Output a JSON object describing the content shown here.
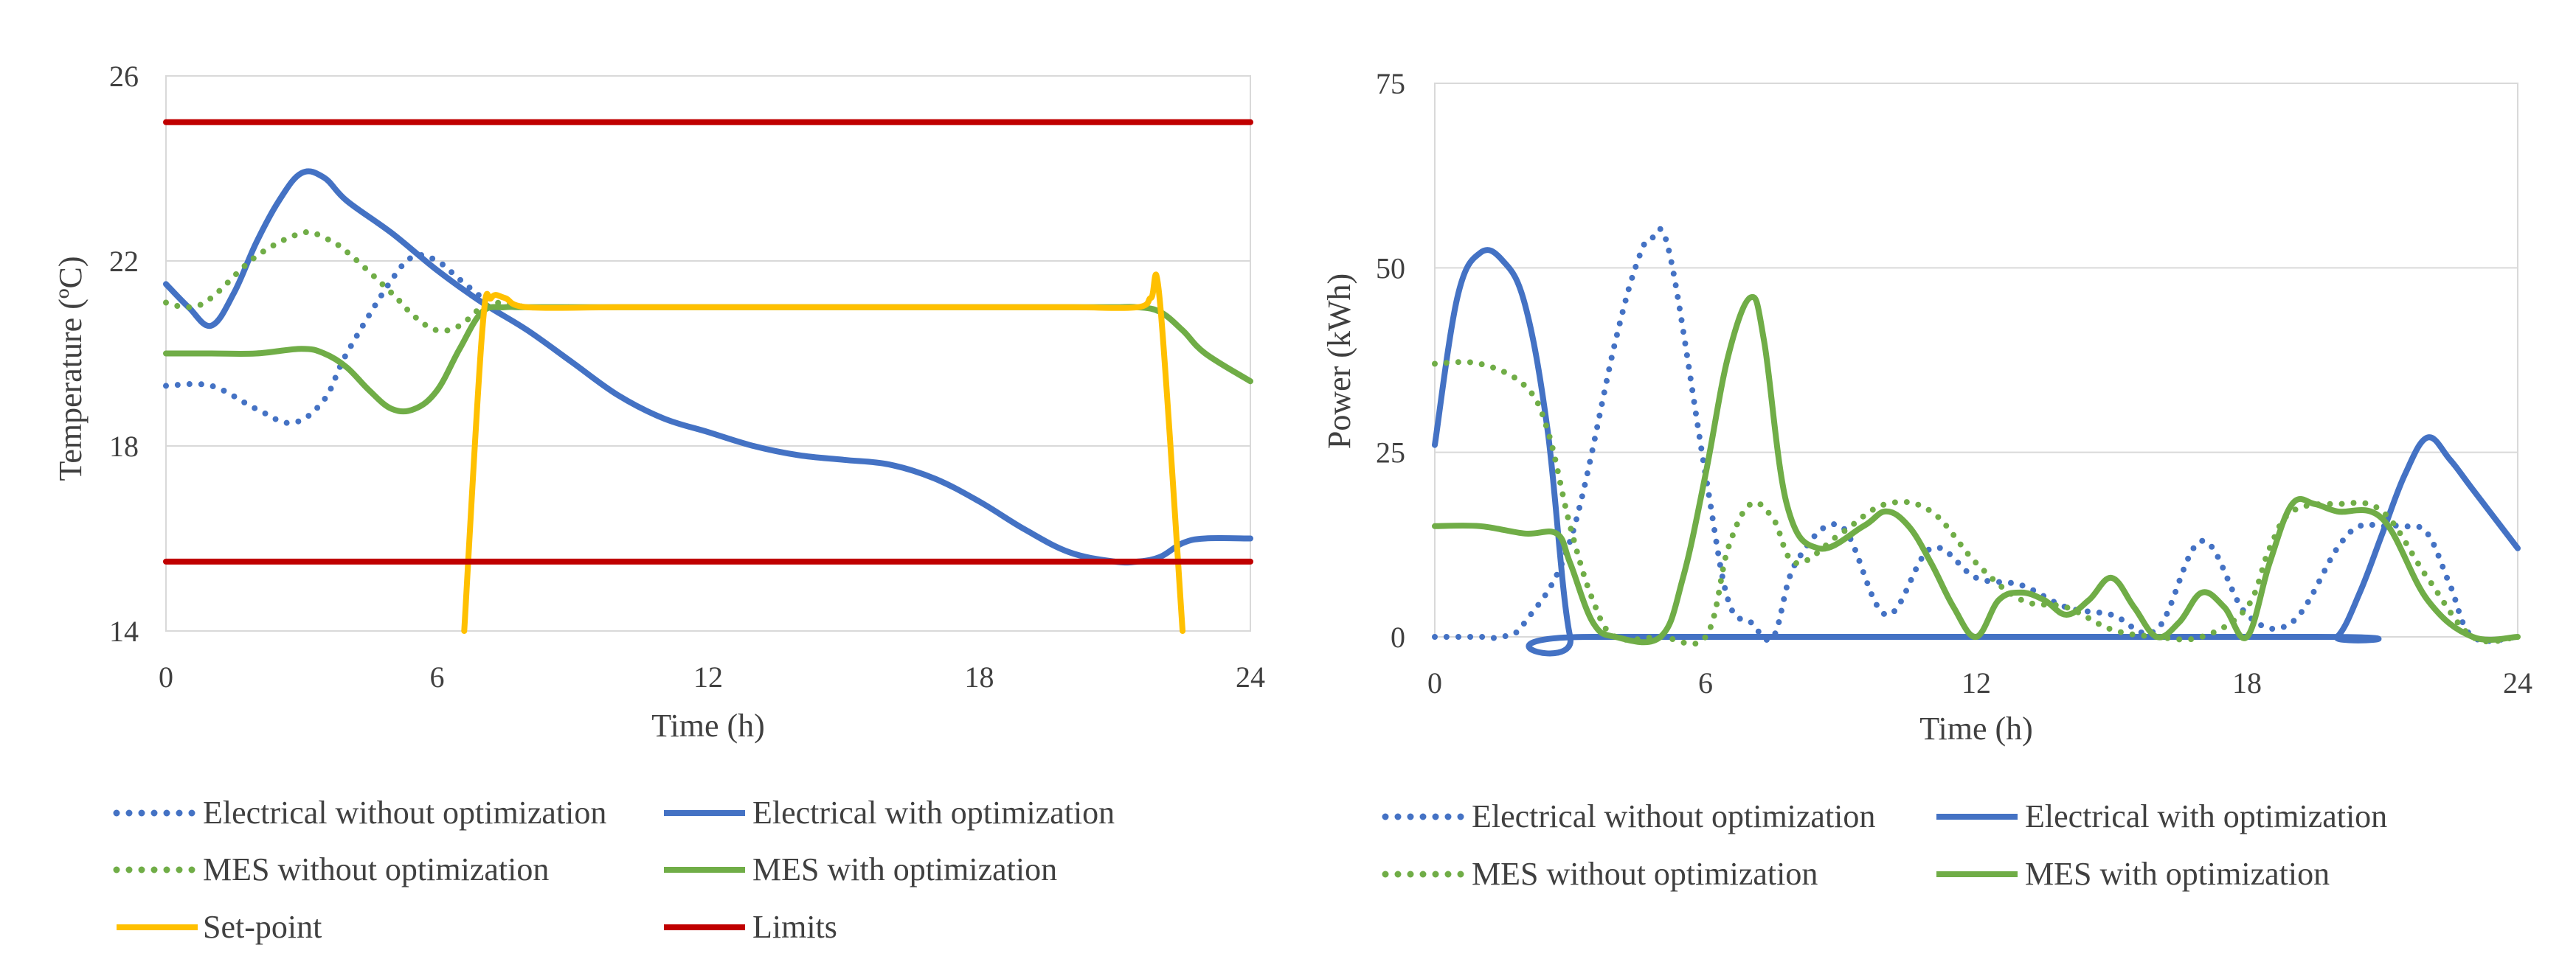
{
  "chart_data": [
    {
      "type": "line",
      "title": "",
      "xlabel": "Time (h)",
      "ylabel": "Temperature (ºC)",
      "xlim": [
        0,
        24
      ],
      "ylim": [
        14,
        26
      ],
      "xticks": [
        "0",
        "6",
        "12",
        "18",
        "24"
      ],
      "yticks": [
        "14",
        "18",
        "22",
        "26"
      ],
      "grid": "horizontal",
      "legend_position": "bottom",
      "series": [
        {
          "name": "Electrical without optimization",
          "color": "#4472C4",
          "style": "dotted",
          "x": [
            0,
            1,
            2,
            2.8,
            3.5,
            4,
            5,
            5.5,
            6,
            6.5,
            7
          ],
          "y": [
            19.3,
            19.3,
            18.8,
            18.5,
            19,
            20,
            21.6,
            22.1,
            22,
            21.6,
            21.2
          ]
        },
        {
          "name": "Electrical with optimization",
          "color": "#4472C4",
          "style": "solid",
          "x": [
            0,
            0.5,
            1,
            1.5,
            2,
            2.5,
            3,
            3.5,
            4,
            5,
            6,
            7,
            8,
            9,
            10,
            11,
            12,
            13,
            14,
            15,
            16,
            17,
            18,
            19,
            20,
            21,
            21.5,
            22,
            22.5,
            23,
            24
          ],
          "y": [
            21.5,
            21,
            20.6,
            21.3,
            22.4,
            23.3,
            23.9,
            23.8,
            23.3,
            22.6,
            21.8,
            21.1,
            20.5,
            19.8,
            19.1,
            18.6,
            18.3,
            18.0,
            17.8,
            17.7,
            17.6,
            17.3,
            16.8,
            16.2,
            15.7,
            15.5,
            15.5,
            15.6,
            15.9,
            16.0,
            16.0
          ]
        },
        {
          "name": "MES without optimization",
          "color": "#70AD47",
          "style": "dotted",
          "x": [
            0,
            0.5,
            1,
            2,
            3,
            3.5,
            4,
            5,
            5.5,
            6,
            6.5,
            7,
            7.5,
            8,
            9
          ],
          "y": [
            21.1,
            21.0,
            21.2,
            22.1,
            22.6,
            22.5,
            22.2,
            21.3,
            20.8,
            20.5,
            20.6,
            21.0,
            21.1,
            21.0,
            21.0
          ]
        },
        {
          "name": "MES with optimization",
          "color": "#70AD47",
          "style": "solid",
          "x": [
            0,
            1,
            2,
            3,
            3.5,
            4,
            4.5,
            5,
            5.5,
            6,
            6.5,
            7,
            7.5,
            8,
            10,
            12,
            14,
            16,
            18,
            20,
            21,
            21.5,
            22,
            22.5,
            23,
            24
          ],
          "y": [
            20.0,
            20.0,
            20.0,
            20.1,
            20.0,
            19.7,
            19.2,
            18.8,
            18.8,
            19.2,
            20.1,
            20.9,
            21.0,
            21.0,
            21.0,
            21.0,
            21.0,
            21.0,
            21.0,
            21.0,
            21.0,
            21.0,
            20.9,
            20.5,
            20.0,
            19.4
          ]
        },
        {
          "name": "Set-point",
          "color": "#FFC000",
          "style": "solid",
          "x": [
            6.6,
            7.0,
            7.2,
            7.5,
            8,
            10,
            12,
            14,
            16,
            18,
            20,
            21.5,
            21.8,
            22,
            22.5
          ],
          "y": [
            14.0,
            20.5,
            21.2,
            21.2,
            21.0,
            21.0,
            21.0,
            21.0,
            21.0,
            21.0,
            21.0,
            21.0,
            21.2,
            21.1,
            14.0
          ]
        },
        {
          "name": "Limits",
          "color": "#C00000",
          "style": "solid",
          "segments": [
            {
              "x": [
                0,
                24
              ],
              "y": [
                25,
                25
              ]
            },
            {
              "x": [
                0,
                24
              ],
              "y": [
                15.5,
                15.5
              ]
            }
          ]
        }
      ]
    },
    {
      "type": "line",
      "title": "",
      "xlabel": "Time (h)",
      "ylabel": "Power (kWh)",
      "xlim": [
        0,
        24
      ],
      "ylim": [
        0,
        75
      ],
      "xticks": [
        "0",
        "6",
        "12",
        "18",
        "24"
      ],
      "yticks": [
        "0",
        "25",
        "50",
        "75"
      ],
      "grid": "horizontal",
      "legend_position": "bottom",
      "series": [
        {
          "name": "Electrical without optimization",
          "color": "#4472C4",
          "style": "dotted",
          "x": [
            0,
            1,
            1.5,
            2,
            3,
            4,
            4.5,
            4.8,
            5.2,
            6,
            6.5,
            7,
            7.5,
            8,
            9,
            10,
            11,
            12,
            13,
            14,
            15,
            16,
            17,
            18,
            19,
            20,
            20.5,
            21,
            21.5,
            22,
            22.5,
            23,
            24
          ],
          "y": [
            0,
            0,
            0,
            2,
            13,
            40,
            51,
            54,
            52,
            22,
            5,
            2,
            0,
            10,
            15,
            3,
            12,
            8,
            7,
            4,
            3,
            1,
            13,
            3,
            2,
            12,
            15,
            15,
            15,
            14,
            7,
            0,
            0
          ]
        },
        {
          "name": "Electrical with optimization",
          "color": "#4472C4",
          "style": "solid",
          "x": [
            0,
            0.5,
            1,
            1.5,
            2,
            2.5,
            3,
            3.5,
            19.5,
            20,
            20.5,
            21,
            21.5,
            22,
            22.5,
            23,
            24
          ],
          "y": [
            26,
            46,
            52,
            51,
            45,
            28,
            0,
            0,
            0,
            0,
            6,
            14,
            22,
            27,
            24,
            20,
            12
          ]
        },
        {
          "name": "MES without optimization",
          "color": "#70AD47",
          "style": "dotted",
          "x": [
            0,
            1,
            2,
            2.5,
            3,
            3.5,
            4,
            5,
            6,
            6.5,
            7,
            7.5,
            8,
            9,
            10,
            11,
            12,
            13,
            14,
            15,
            16,
            17,
            18,
            18.5,
            19,
            20,
            21,
            22,
            23,
            24
          ],
          "y": [
            37,
            37,
            34,
            28,
            15,
            5,
            0,
            0,
            0,
            12,
            18,
            16,
            10,
            14,
            18,
            17,
            10,
            5,
            4,
            1,
            0,
            0,
            4,
            12,
            17,
            18,
            17,
            8,
            0,
            0
          ]
        },
        {
          "name": "MES with optimization",
          "color": "#70AD47",
          "style": "solid",
          "x": [
            0,
            1,
            2,
            2.7,
            3,
            3.5,
            4,
            5,
            5.5,
            6,
            6.5,
            7,
            7.3,
            7.8,
            8.5,
            9.5,
            10,
            10.5,
            11,
            11.5,
            12,
            12.5,
            13,
            13.5,
            14,
            14.5,
            15,
            15.5,
            16,
            16.5,
            17,
            17.5,
            18,
            18.5,
            19,
            19.5,
            20,
            21,
            22,
            23,
            24
          ],
          "y": [
            15,
            15,
            14,
            14,
            10,
            2,
            0,
            0,
            8,
            22,
            38,
            46,
            40,
            18,
            12,
            15,
            17,
            15,
            10,
            4,
            0,
            5,
            6,
            5,
            3,
            5,
            8,
            4,
            0,
            2,
            6,
            4,
            0,
            10,
            18,
            18,
            17,
            16,
            5,
            0,
            0
          ]
        }
      ]
    }
  ],
  "legend_left": {
    "items": [
      {
        "label": "Electrical without optimization",
        "color": "#4472C4",
        "style": "dotted"
      },
      {
        "label": "Electrical with optimization",
        "color": "#4472C4",
        "style": "solid"
      },
      {
        "label": "MES without optimization",
        "color": "#70AD47",
        "style": "dotted"
      },
      {
        "label": "MES with optimization",
        "color": "#70AD47",
        "style": "solid"
      },
      {
        "label": "Set-point",
        "color": "#FFC000",
        "style": "solid"
      },
      {
        "label": "Limits",
        "color": "#C00000",
        "style": "solid"
      }
    ]
  },
  "legend_right": {
    "items": [
      {
        "label": "Electrical without optimization",
        "color": "#4472C4",
        "style": "dotted"
      },
      {
        "label": "Electrical with optimization",
        "color": "#4472C4",
        "style": "solid"
      },
      {
        "label": "MES without optimization",
        "color": "#70AD47",
        "style": "dotted"
      },
      {
        "label": "MES with optimization",
        "color": "#70AD47",
        "style": "solid"
      }
    ]
  }
}
